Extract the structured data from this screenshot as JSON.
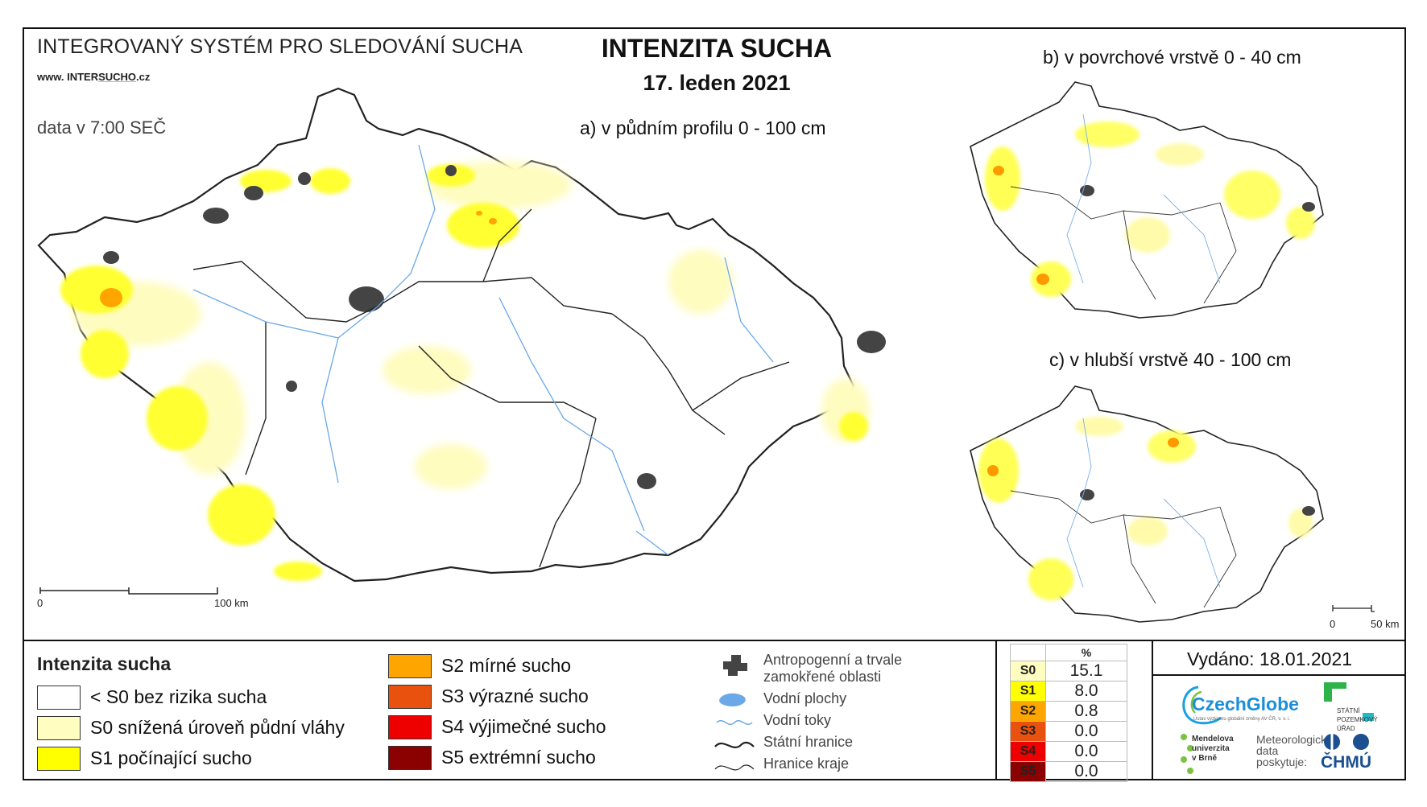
{
  "header": {
    "system_title": "INTEGROVANÝ SYSTÉM PRO SLEDOVÁNÍ SUCHA",
    "website_prefix": "www. INTER",
    "website_mid": "SUCHO",
    "website_suffix": ".cz",
    "data_time": "data v 7:00 SEČ",
    "main_title": "INTENZITA SUCHA",
    "date": "17. leden 2021"
  },
  "maps": {
    "a_label": "a) v půdním profilu 0 - 100 cm",
    "b_label": "b) v povrchové vrstvě 0 - 40 cm",
    "c_label": "c) v hlubší vrstvě 40 - 100 cm",
    "scale_main_0": "0",
    "scale_main_100": "100 km",
    "scale_small_0": "0",
    "scale_small_50": "50 km"
  },
  "legend": {
    "title": "Intenzita sucha",
    "classes": [
      {
        "label": "< S0 bez rizika sucha",
        "color": "#ffffff"
      },
      {
        "label": "S0 snížená úroveň půdní vláhy",
        "color": "#fffdc0"
      },
      {
        "label": "S1 počínající sucho",
        "color": "#ffff00"
      },
      {
        "label": "S2 mírné sucho",
        "color": "#ffa500"
      },
      {
        "label": "S3 výrazné sucho",
        "color": "#e9520e"
      },
      {
        "label": "S4 výjimečné sucho",
        "color": "#ee0000"
      },
      {
        "label": "S5 extrémní sucho",
        "color": "#8b0000"
      }
    ],
    "auxiliary": {
      "anthropogenic_1": "Antropogenní a trvale",
      "anthropogenic_2": "zamokřené oblasti",
      "water_bodies": "Vodní plochy",
      "rivers": "Vodní toky",
      "state_border": "Státní hranice",
      "region_border": "Hranice kraje"
    }
  },
  "stats": {
    "percent_header": "%",
    "rows": [
      {
        "code": "S0",
        "value": "15.1",
        "color": "#fffdc0",
        "text_color": "#000000"
      },
      {
        "code": "S1",
        "value": "8.0",
        "color": "#ffff00",
        "text_color": "#000000"
      },
      {
        "code": "S2",
        "value": "0.8",
        "color": "#ffa500",
        "text_color": "#000000"
      },
      {
        "code": "S3",
        "value": "0.0",
        "color": "#e9520e",
        "text_color": "#000000"
      },
      {
        "code": "S4",
        "value": "0.0",
        "color": "#ee0000",
        "text_color": "#000000"
      },
      {
        "code": "S5",
        "value": "0.0",
        "color": "#8b0000",
        "text_color": "#000000"
      }
    ]
  },
  "footer": {
    "issued": "Vydáno: 18.01.2021",
    "czechglobe": "CzechGlobe",
    "czechglobe_sub": "Ústav výzkumu globální změny AV ČR, v. v. i.",
    "spu_1": "STÁTNÍ",
    "spu_2": "POZEMKOVÝ",
    "spu_3": "ÚŘAD",
    "mendel_1": "Mendelova",
    "mendel_2": "univerzita",
    "mendel_3": "v Brně",
    "meteo_1": "Meteorologická",
    "meteo_2": "data",
    "meteo_3": "poskytuje:",
    "chmu": "ČHMÚ"
  }
}
